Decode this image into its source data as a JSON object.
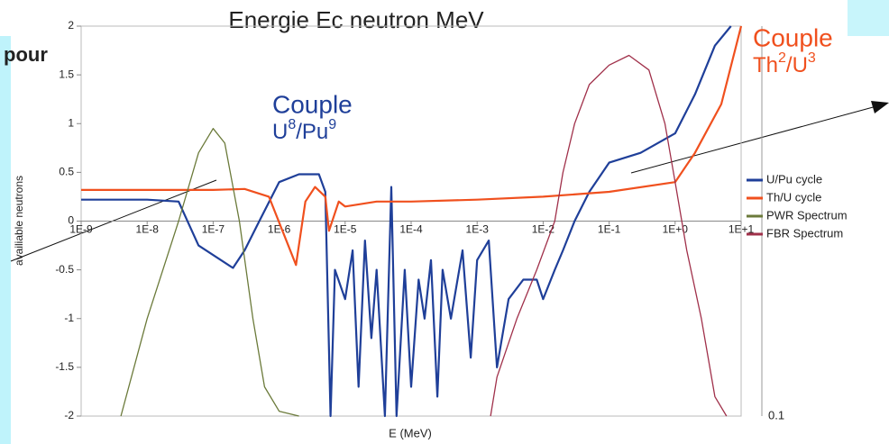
{
  "chart_data": {
    "type": "line",
    "title": "Energie Ec neutron MeV",
    "x_label": "E (MeV)",
    "y_label": "availiable neutrons",
    "side_text": "pour",
    "right_axis_label": "0.1",
    "annotations": [
      {
        "text": "Couple",
        "parts": [
          "U",
          "8",
          "/Pu",
          "9"
        ],
        "color": "#1f3f99"
      },
      {
        "text": "Couple",
        "parts": [
          "Th",
          "2",
          "/U",
          "3"
        ],
        "color": "#f0501e"
      }
    ],
    "log_x": true,
    "xlim": [
      1e-09,
      10
    ],
    "xticks": [
      {
        "value": 1e-09,
        "label": "1E-9"
      },
      {
        "value": 1e-08,
        "label": "1E-8"
      },
      {
        "value": 1e-07,
        "label": "1E-7"
      },
      {
        "value": 1e-06,
        "label": "1E-6"
      },
      {
        "value": 1e-05,
        "label": "1E-5"
      },
      {
        "value": 0.0001,
        "label": "1E-4"
      },
      {
        "value": 0.001,
        "label": "1E-3"
      },
      {
        "value": 0.01,
        "label": "1E-2"
      },
      {
        "value": 0.1,
        "label": "1E-1"
      },
      {
        "value": 1,
        "label": "1E+0"
      },
      {
        "value": 10,
        "label": "1E+1"
      }
    ],
    "ylim": [
      -2,
      2
    ],
    "yticks": [
      -2,
      -1.5,
      -1,
      -0.5,
      0,
      0.5,
      1,
      1.5,
      2
    ],
    "series": [
      {
        "name": "U/Pu cycle",
        "color": "#1f3f99",
        "x": [
          1e-09,
          1e-08,
          3e-08,
          6e-08,
          2e-07,
          3e-07,
          5e-07,
          1e-06,
          2e-06,
          4e-06,
          5e-06,
          6e-06,
          7e-06,
          1e-05,
          1.3e-05,
          1.6e-05,
          2e-05,
          2.5e-05,
          3e-05,
          4e-05,
          5e-05,
          6e-05,
          8e-05,
          0.0001,
          0.00013,
          0.00016,
          0.0002,
          0.00025,
          0.0003,
          0.0004,
          0.0006,
          0.0008,
          0.001,
          0.0015,
          0.002,
          0.003,
          0.005,
          0.008,
          0.01,
          0.015,
          0.02,
          0.03,
          0.05,
          0.1,
          0.3,
          1,
          2,
          4,
          7
        ],
        "values": [
          0.22,
          0.22,
          0.2,
          -0.25,
          -0.48,
          -0.3,
          0.0,
          0.4,
          0.48,
          0.48,
          0.3,
          -2,
          -0.5,
          -0.8,
          -0.3,
          -1.7,
          -0.2,
          -1.2,
          -0.5,
          -2,
          0.35,
          -2,
          -0.5,
          -1.7,
          -0.6,
          -1.0,
          -0.4,
          -1.8,
          -0.5,
          -1.0,
          -0.3,
          -1.4,
          -0.4,
          -0.2,
          -1.5,
          -0.8,
          -0.6,
          -0.6,
          -0.8,
          -0.5,
          -0.3,
          0.0,
          0.3,
          0.6,
          0.7,
          0.9,
          1.3,
          1.8,
          2.0
        ]
      },
      {
        "name": "Th/U cycle",
        "color": "#f0501e",
        "x": [
          1e-09,
          1e-08,
          1e-07,
          3e-07,
          7e-07,
          1.8e-06,
          2.5e-06,
          3.5e-06,
          5e-06,
          5.7e-06,
          8e-06,
          1e-05,
          3e-05,
          0.0001,
          0.001,
          0.01,
          0.1,
          1,
          2,
          5,
          10
        ],
        "values": [
          0.32,
          0.32,
          0.32,
          0.33,
          0.25,
          -0.45,
          0.2,
          0.35,
          0.25,
          -0.1,
          0.2,
          0.15,
          0.2,
          0.2,
          0.22,
          0.25,
          0.3,
          0.4,
          0.7,
          1.2,
          2.0
        ]
      },
      {
        "name": "PWR Spectrum",
        "color": "#6b7a3a",
        "x": [
          4e-09,
          1e-08,
          3e-08,
          6e-08,
          1e-07,
          1.5e-07,
          2.5e-07,
          4e-07,
          6e-07,
          1e-06,
          2e-06
        ],
        "values": [
          -2,
          -1.0,
          0.0,
          0.7,
          0.95,
          0.8,
          0.0,
          -1.0,
          -1.7,
          -1.95,
          -2
        ]
      },
      {
        "name": "FBR Spectrum",
        "color": "#a0304a",
        "x": [
          0.0016,
          0.002,
          0.004,
          0.008,
          0.015,
          0.02,
          0.03,
          0.05,
          0.1,
          0.2,
          0.4,
          0.7,
          1,
          1.5,
          2.5,
          4,
          6
        ],
        "values": [
          -2,
          -1.6,
          -1.0,
          -0.5,
          0.0,
          0.5,
          1.0,
          1.4,
          1.6,
          1.7,
          1.55,
          1.0,
          0.4,
          -0.3,
          -1.0,
          -1.8,
          -2
        ]
      }
    ]
  }
}
